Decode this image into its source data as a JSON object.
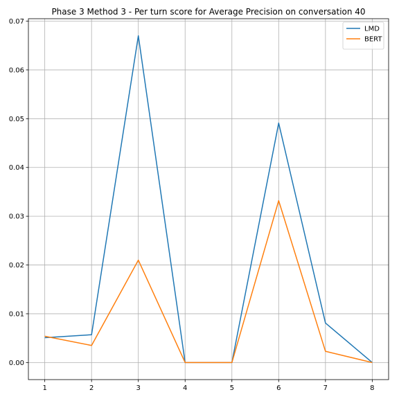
{
  "chart_data": {
    "type": "line",
    "title": "Phase 3 Method 3 - Per turn score for Average Precision on conversation 40",
    "xlabel": "",
    "ylabel": "",
    "x": [
      1,
      2,
      3,
      4,
      5,
      6,
      7,
      8
    ],
    "xlim": [
      0.65,
      8.35
    ],
    "ylim": [
      -0.0035,
      0.0705
    ],
    "xticks": [
      "1",
      "2",
      "3",
      "4",
      "5",
      "6",
      "7",
      "8"
    ],
    "yticks": [
      "0.00",
      "0.01",
      "0.02",
      "0.03",
      "0.04",
      "0.05",
      "0.06",
      "0.07"
    ],
    "grid": true,
    "legend_position": "top-right",
    "series": [
      {
        "name": "LMD",
        "color": "#1f77b4",
        "values": [
          0.0051,
          0.0057,
          0.067,
          0.0,
          0.0,
          0.0491,
          0.0081,
          0.0
        ]
      },
      {
        "name": "BERT",
        "color": "#ff7f0e",
        "values": [
          0.0054,
          0.0035,
          0.021,
          0.0,
          0.0,
          0.0332,
          0.0023,
          0.0
        ]
      }
    ]
  }
}
